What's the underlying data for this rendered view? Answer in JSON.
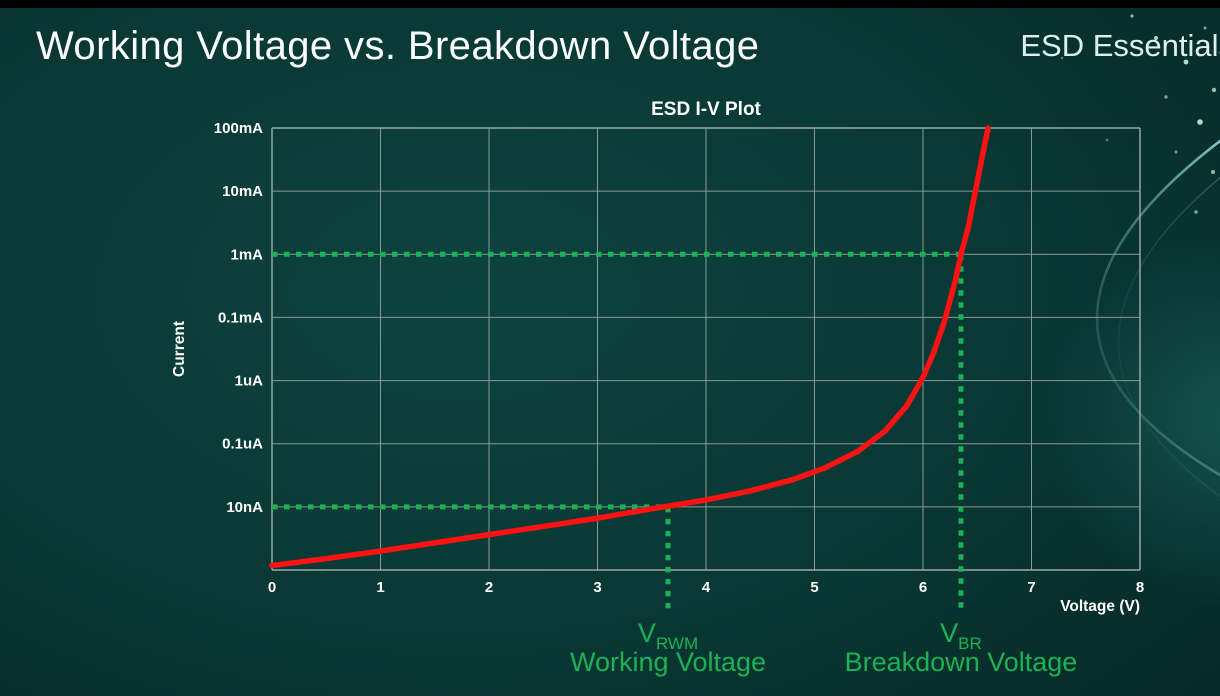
{
  "slide": {
    "title": "Working Voltage vs. Breakdown Voltage",
    "brand": "ESD Essentials"
  },
  "chart_data": {
    "type": "line",
    "title": "ESD I-V Plot",
    "xlabel": "Voltage (V)",
    "ylabel": "Current",
    "xlim": [
      0,
      8
    ],
    "x_ticks": [
      0,
      1,
      2,
      3,
      4,
      5,
      6,
      7,
      8
    ],
    "y_tick_labels": [
      "100mA",
      "10mA",
      "1mA",
      "0.1mA",
      "1uA",
      "0.1uA",
      "10nA"
    ],
    "y_axis_note": "logarithmic current axis, one gridline per labeled tick plus an unlabeled bottom axis line",
    "grid": true,
    "legend": "none",
    "colors": {
      "grid": "#97a3a1",
      "axis_text": "#ffffff",
      "curve": "#fb1212",
      "annotation_green": "#1db155"
    },
    "series": [
      {
        "name": "ESD device I-V curve",
        "color": "#fb1212",
        "y_units": "tick-row index from top: 0 = 100mA gridline, 2 = 1mA, 6 = 10nA, 7 = unlabeled bottom axis",
        "points": [
          [
            0,
            6.93
          ],
          [
            0.5,
            6.82
          ],
          [
            1,
            6.7
          ],
          [
            1.5,
            6.57
          ],
          [
            2,
            6.44
          ],
          [
            2.5,
            6.31
          ],
          [
            3,
            6.18
          ],
          [
            3.5,
            6.03
          ],
          [
            3.65,
            5.99
          ],
          [
            4,
            5.89
          ],
          [
            4.4,
            5.75
          ],
          [
            4.8,
            5.57
          ],
          [
            5.1,
            5.38
          ],
          [
            5.4,
            5.12
          ],
          [
            5.65,
            4.8
          ],
          [
            5.85,
            4.4
          ],
          [
            6.0,
            3.95
          ],
          [
            6.1,
            3.55
          ],
          [
            6.2,
            3.05
          ],
          [
            6.3,
            2.4
          ],
          [
            6.35,
            2.0
          ],
          [
            6.42,
            1.55
          ],
          [
            6.5,
            0.85
          ],
          [
            6.57,
            0.25
          ],
          [
            6.6,
            0
          ]
        ]
      }
    ],
    "annotations": [
      {
        "id": "vrwm",
        "x": 3.65,
        "y_row": 6,
        "y_label": "10nA",
        "symbol": "V",
        "subscript": "RWM",
        "caption": "Working Voltage",
        "color": "#1db155"
      },
      {
        "id": "vbr",
        "x": 6.35,
        "y_row": 2,
        "y_label": "1mA",
        "symbol": "V",
        "subscript": "BR",
        "caption": "Breakdown Voltage",
        "color": "#1db155"
      }
    ]
  }
}
